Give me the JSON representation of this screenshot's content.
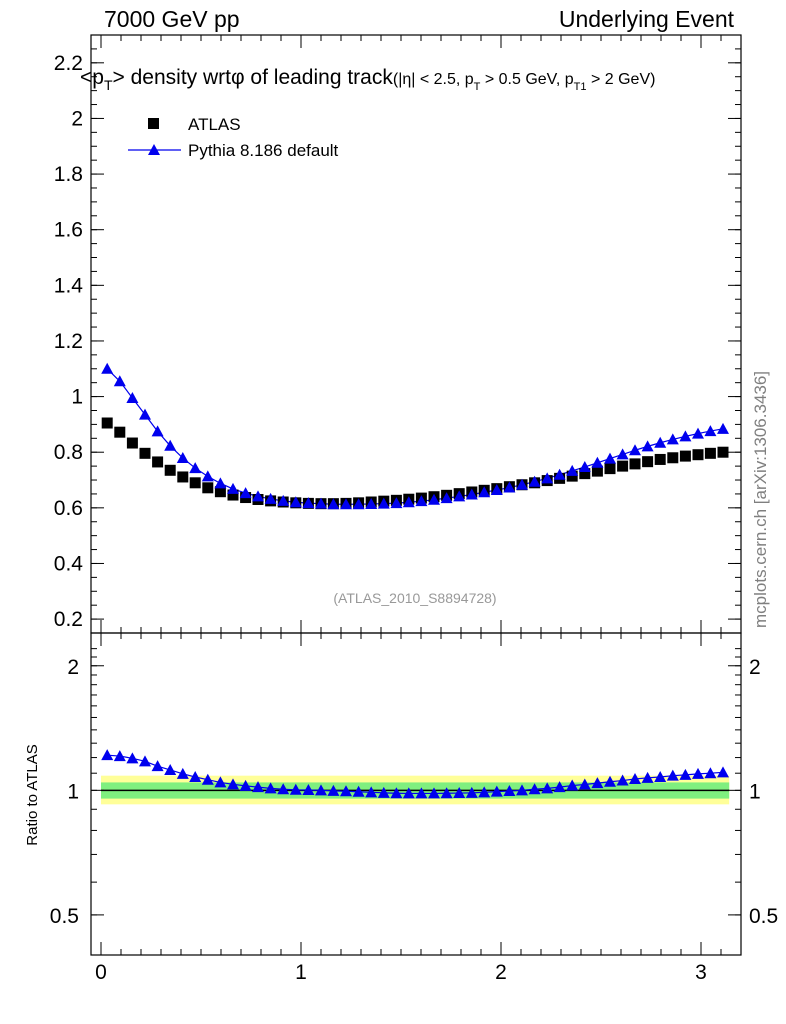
{
  "header": {
    "left": "7000 GeV pp",
    "right": "Underlying Event"
  },
  "side_label": "mcplots.cern.ch [arXiv:1306.3436]",
  "chart_data": [
    {
      "type": "scatter",
      "title": "<pT> density wrtφ of leading track",
      "title_parts": {
        "main_pre": "<p",
        "main_sub": "T",
        "main_post": "> density wrtφ of leading track",
        "cut_1": "(|η| < 2.5, p",
        "cut_1_sub": "T",
        "cut_2": " > 0.5 GeV, p",
        "cut_2_sub": "T1",
        "cut_3": " > 2 GeV)"
      },
      "watermark": "(ATLAS_2010_S8894728)",
      "xlim": [
        -0.05,
        3.2
      ],
      "ylim": [
        0.15,
        2.3
      ],
      "y_ticks": [
        0.2,
        0.4,
        0.6,
        0.8,
        1,
        1.2,
        1.4,
        1.6,
        1.8,
        2,
        2.2
      ],
      "y_tick_labels": [
        "0.2",
        "0.4",
        "0.6",
        "0.8",
        "1",
        "1.2",
        "1.4",
        "1.6",
        "1.8",
        "2",
        "2.2"
      ],
      "legend_position": "top-left",
      "series": [
        {
          "name": "ATLAS",
          "marker": "square",
          "color": "#000000",
          "x": [
            0.031,
            0.094,
            0.157,
            0.22,
            0.283,
            0.346,
            0.409,
            0.471,
            0.534,
            0.597,
            0.66,
            0.723,
            0.785,
            0.848,
            0.911,
            0.974,
            1.037,
            1.1,
            1.162,
            1.225,
            1.288,
            1.351,
            1.414,
            1.477,
            1.539,
            1.602,
            1.665,
            1.728,
            1.791,
            1.854,
            1.916,
            1.979,
            2.042,
            2.105,
            2.168,
            2.231,
            2.293,
            2.356,
            2.419,
            2.482,
            2.545,
            2.608,
            2.67,
            2.733,
            2.796,
            2.859,
            2.922,
            2.985,
            3.047,
            3.11
          ],
          "y": [
            0.905,
            0.872,
            0.833,
            0.796,
            0.765,
            0.735,
            0.711,
            0.69,
            0.672,
            0.658,
            0.646,
            0.637,
            0.63,
            0.625,
            0.621,
            0.618,
            0.616,
            0.615,
            0.615,
            0.616,
            0.618,
            0.621,
            0.624,
            0.627,
            0.631,
            0.635,
            0.64,
            0.645,
            0.651,
            0.657,
            0.663,
            0.669,
            0.676,
            0.683,
            0.69,
            0.698,
            0.706,
            0.714,
            0.723,
            0.732,
            0.741,
            0.75,
            0.758,
            0.766,
            0.774,
            0.78,
            0.786,
            0.791,
            0.796,
            0.8
          ]
        },
        {
          "name": "Pythia 8.186 default",
          "marker": "triangle",
          "color": "#0000ee",
          "x": [
            0.031,
            0.094,
            0.157,
            0.22,
            0.283,
            0.346,
            0.409,
            0.471,
            0.534,
            0.597,
            0.66,
            0.723,
            0.785,
            0.848,
            0.911,
            0.974,
            1.037,
            1.1,
            1.162,
            1.225,
            1.288,
            1.351,
            1.414,
            1.477,
            1.539,
            1.602,
            1.665,
            1.728,
            1.791,
            1.854,
            1.916,
            1.979,
            2.042,
            2.105,
            2.168,
            2.231,
            2.293,
            2.356,
            2.419,
            2.482,
            2.545,
            2.608,
            2.67,
            2.733,
            2.796,
            2.859,
            2.922,
            2.985,
            3.047,
            3.11
          ],
          "y": [
            1.1,
            1.055,
            0.995,
            0.935,
            0.875,
            0.823,
            0.779,
            0.743,
            0.713,
            0.688,
            0.668,
            0.653,
            0.641,
            0.632,
            0.625,
            0.62,
            0.617,
            0.615,
            0.613,
            0.613,
            0.613,
            0.614,
            0.615,
            0.617,
            0.62,
            0.624,
            0.629,
            0.635,
            0.641,
            0.648,
            0.656,
            0.664,
            0.673,
            0.683,
            0.694,
            0.706,
            0.719,
            0.733,
            0.747,
            0.762,
            0.777,
            0.792,
            0.807,
            0.821,
            0.834,
            0.846,
            0.857,
            0.867,
            0.876,
            0.884
          ]
        }
      ]
    },
    {
      "type": "scatter",
      "ylabel": "Ratio to ATLAS",
      "xlim": [
        -0.05,
        3.2
      ],
      "ylim": [
        0.4,
        2.4
      ],
      "y_log": true,
      "x_ticks": [
        0,
        1,
        2,
        3
      ],
      "x_tick_labels": [
        "0",
        "1",
        "2",
        "3"
      ],
      "y_ticks": [
        0.5,
        1,
        2
      ],
      "y_tick_labels": [
        "0.5",
        "1",
        "2"
      ],
      "bands": {
        "inner_color": "#7fef7f",
        "outer_color": "#ffff99",
        "inner": [
          0.955,
          1.045
        ],
        "outer": [
          0.925,
          1.085
        ]
      },
      "series": [
        {
          "name": "Pythia 8.186 default",
          "marker": "triangle",
          "color": "#0000ee",
          "y": [
            1.216,
            1.21,
            1.195,
            1.175,
            1.144,
            1.12,
            1.096,
            1.077,
            1.061,
            1.045,
            1.034,
            1.025,
            1.018,
            1.011,
            1.006,
            1.003,
            1.002,
            1.0,
            0.997,
            0.995,
            0.992,
            0.989,
            0.986,
            0.984,
            0.983,
            0.983,
            0.983,
            0.984,
            0.985,
            0.986,
            0.989,
            0.993,
            0.996,
            1.0,
            1.006,
            1.011,
            1.018,
            1.027,
            1.033,
            1.041,
            1.049,
            1.056,
            1.065,
            1.072,
            1.077,
            1.085,
            1.09,
            1.096,
            1.1,
            1.105
          ]
        }
      ]
    }
  ]
}
